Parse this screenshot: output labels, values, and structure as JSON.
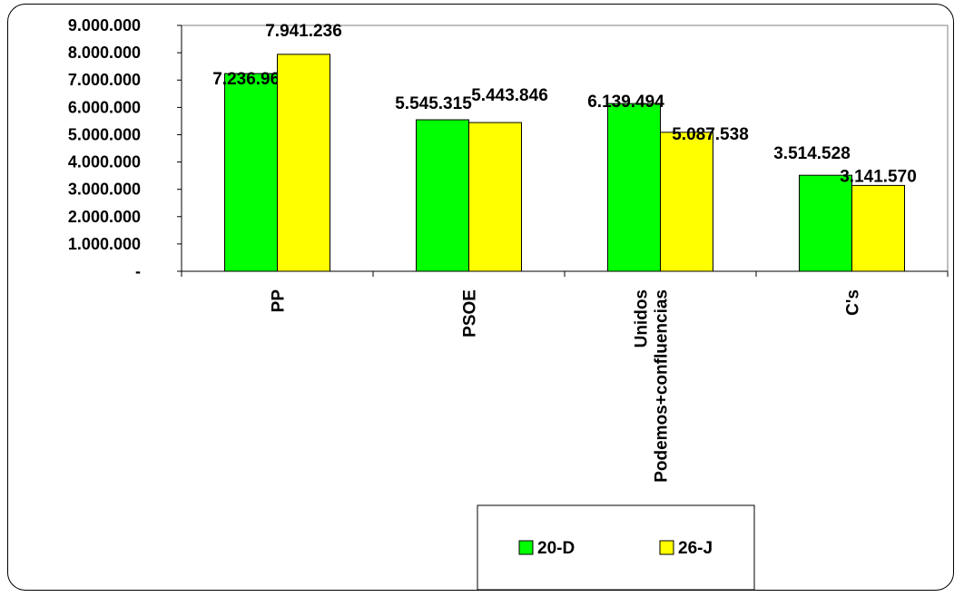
{
  "chart_data": {
    "type": "bar",
    "title": "",
    "xlabel": "",
    "ylabel": "",
    "categories": [
      "PP",
      "PSOE",
      "Unidos Podemos+confluencias",
      "C's"
    ],
    "series": [
      {
        "name": "20-D",
        "values": [
          7236965,
          5545315,
          6139494,
          3514528
        ],
        "color": "#00ff00"
      },
      {
        "name": "26-J",
        "values": [
          7941236,
          5443846,
          5087538,
          3141570
        ],
        "color": "#ffff00"
      }
    ],
    "data_labels": [
      [
        "7.236.965",
        "5.545.315",
        "6.139.494",
        "3.514.528"
      ],
      [
        "7.941.236",
        "5.443.846",
        "5.087.538",
        "3.141.570"
      ]
    ],
    "category_labels": [
      [
        "PP"
      ],
      [
        "PSOE"
      ],
      [
        "Unidos",
        "Podemos+confluencias"
      ],
      [
        "C's"
      ]
    ],
    "yticks": [
      "-",
      "1.000.000",
      "2.000.000",
      "3.000.000",
      "4.000.000",
      "5.000.000",
      "6.000.000",
      "7.000.000",
      "8.000.000",
      "9.000.000"
    ],
    "ylim": [
      0,
      9000000
    ],
    "grid": false,
    "legend_position": "bottom-center"
  }
}
